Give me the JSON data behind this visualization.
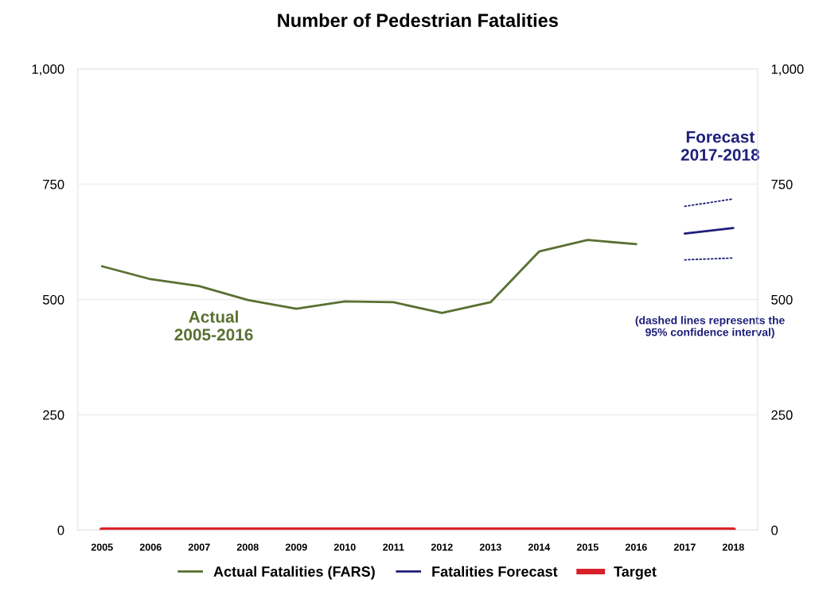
{
  "chart_data": {
    "type": "line",
    "title": "Number of Pedestrian Fatalities",
    "categories": [
      "2005",
      "2006",
      "2007",
      "2008",
      "2009",
      "2010",
      "2011",
      "2012",
      "2013",
      "2014",
      "2015",
      "2016",
      "2017",
      "2018"
    ],
    "series": [
      {
        "name": "Actual Fatalities (FARS)",
        "color": "#5a7032",
        "values": [
          572,
          544,
          529,
          499,
          480,
          496,
          494,
          471,
          494,
          604,
          629,
          620,
          null,
          null
        ]
      },
      {
        "name": "Fatalities Forecast",
        "color": "#1f1f7a",
        "values": [
          null,
          null,
          null,
          null,
          null,
          null,
          null,
          null,
          null,
          null,
          null,
          null,
          643,
          655
        ]
      },
      {
        "name": "Target",
        "color": "#d9202a",
        "values": [
          0,
          0,
          0,
          0,
          0,
          0,
          0,
          0,
          0,
          0,
          0,
          0,
          0,
          0
        ]
      },
      {
        "color": "#1f1f7a",
        "line_style": "dotted",
        "values": [
          null,
          null,
          null,
          null,
          null,
          null,
          null,
          null,
          null,
          null,
          null,
          null,
          702,
          718
        ]
      },
      {
        "color": "#1f1f7a",
        "line_style": "dotted",
        "values": [
          null,
          null,
          null,
          null,
          null,
          null,
          null,
          null,
          null,
          null,
          null,
          null,
          586,
          590
        ]
      }
    ],
    "ylim": [
      0,
      1000
    ],
    "yticks": [
      0,
      250,
      500,
      750,
      {
        "value": 1000,
        "label": "1,000"
      }
    ],
    "y2lim": [
      0,
      1000
    ],
    "y2ticks": [
      0,
      250,
      500,
      750,
      {
        "value": 1000,
        "label": "1,000"
      }
    ],
    "annotations": [
      "Actual\n2005-2016",
      "Forecast\n2017-2018",
      "(dashed lines represents the\n95% confidence interval)"
    ],
    "grid": "y",
    "legend": "bottom",
    "line_style": "solid",
    "marker": "none"
  }
}
